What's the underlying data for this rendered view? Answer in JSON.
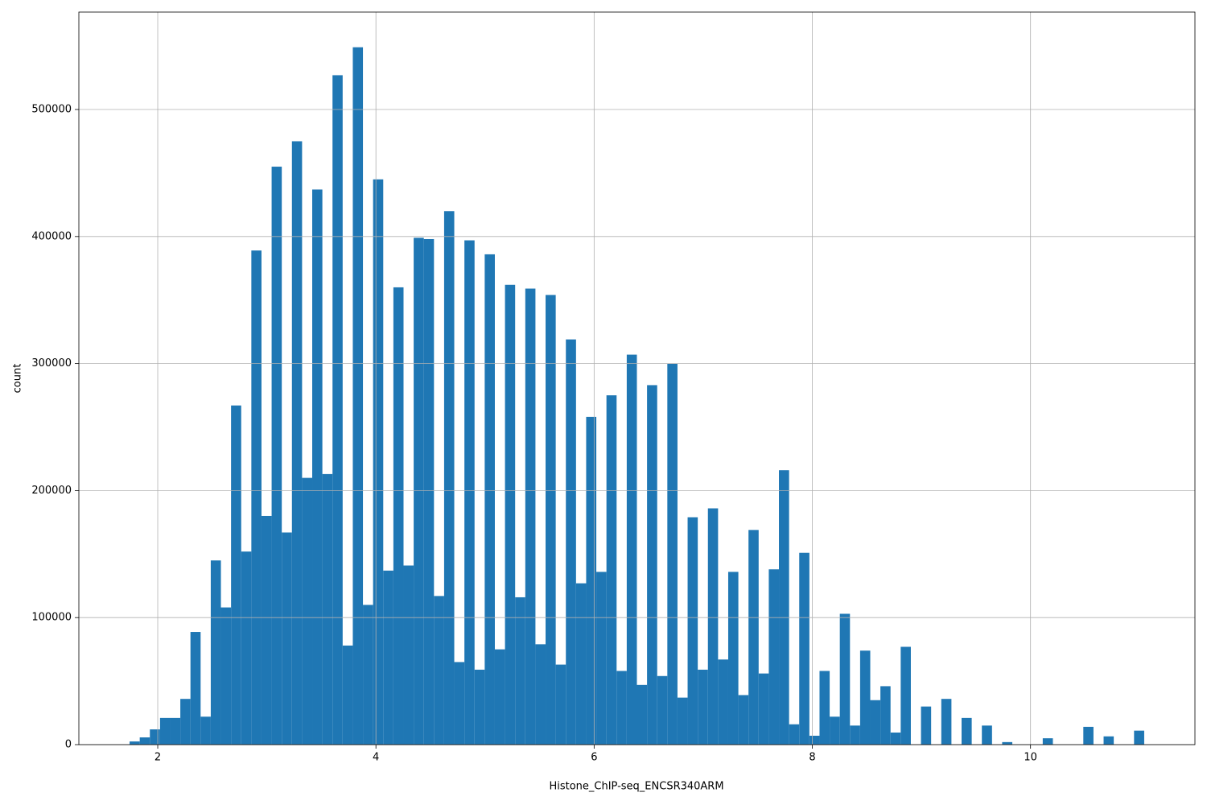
{
  "chart_data": {
    "type": "histogram",
    "x_label": "Histone_ChIP-seq_ENCSR340ARM",
    "y_label": "count",
    "color": "#1f77b4",
    "grid": true,
    "bins": [
      1.742,
      1.835,
      1.928,
      2.021,
      2.114,
      2.207,
      2.3,
      2.393,
      2.486,
      2.579,
      2.672,
      2.765,
      2.858,
      2.951,
      3.044,
      3.137,
      3.23,
      3.323,
      3.416,
      3.509,
      3.602,
      3.695,
      3.788,
      3.881,
      3.974,
      4.067,
      4.16,
      4.253,
      4.346,
      4.439,
      4.532,
      4.625,
      4.718,
      4.811,
      4.904,
      4.997,
      5.09,
      5.183,
      5.276,
      5.369,
      5.462,
      5.555,
      5.648,
      5.741,
      5.834,
      5.927,
      6.02,
      6.113,
      6.206,
      6.299,
      6.392,
      6.485,
      6.578,
      6.671,
      6.764,
      6.857,
      6.95,
      7.043,
      7.136,
      7.229,
      7.322,
      7.415,
      7.508,
      7.601,
      7.694,
      7.787,
      7.88,
      7.973,
      8.066,
      8.159,
      8.252,
      8.345,
      8.438,
      8.531,
      8.624,
      8.717,
      8.81,
      8.903,
      8.996,
      9.089,
      9.182,
      9.275,
      9.368,
      9.461,
      9.554,
      9.647,
      9.74,
      9.833,
      9.926,
      10.019,
      10.112,
      10.205,
      10.298,
      10.391,
      10.484,
      10.577,
      10.67,
      10.763,
      10.856,
      10.949,
      11.042
    ],
    "values": [
      2500,
      5700,
      12000,
      21000,
      21000,
      36000,
      88700,
      22000,
      145000,
      108000,
      267000,
      152000,
      389000,
      180000,
      455000,
      167000,
      475000,
      210000,
      437000,
      213000,
      527000,
      78000,
      549000,
      110000,
      445000,
      137000,
      360000,
      141000,
      399000,
      398000,
      117000,
      420000,
      65000,
      397000,
      59000,
      386000,
      75000,
      362000,
      116000,
      359000,
      79000,
      354000,
      63000,
      319000,
      127000,
      258000,
      136000,
      275000,
      58000,
      307000,
      47000,
      283000,
      54000,
      300000,
      37000,
      179000,
      59000,
      186000,
      67000,
      136000,
      39000,
      169000,
      56000,
      138000,
      216000,
      16000,
      151000,
      7000,
      58000,
      22000,
      103000,
      15000,
      74000,
      35000,
      46000,
      9500,
      77000,
      0,
      30000,
      0,
      36000,
      0,
      21000,
      0,
      15000,
      0,
      2000,
      0,
      0,
      0,
      5000,
      0,
      0,
      0,
      14000,
      0,
      6500,
      0,
      0,
      11000
    ],
    "xlim": [
      1.277,
      11.507
    ],
    "ylim": [
      0,
      576700
    ],
    "xticks": [
      2,
      4,
      6,
      8,
      10
    ],
    "yticks": [
      0,
      100000,
      200000,
      300000,
      400000,
      500000
    ]
  }
}
